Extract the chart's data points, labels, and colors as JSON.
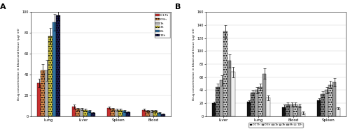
{
  "panel_A": {
    "categories": [
      "Lung",
      "Liver",
      "Spleen",
      "Blood"
    ],
    "times": [
      "0.17h",
      "0.5h",
      "1h",
      "3h",
      "6h",
      "12h"
    ],
    "values": {
      "Lung": [
        32,
        44,
        44,
        77,
        90,
        97
      ],
      "Liver": [
        9,
        7,
        7,
        6,
        5,
        3
      ],
      "Spleen": [
        8,
        7,
        6,
        6,
        5,
        4
      ],
      "Blood": [
        6,
        5,
        5,
        5,
        3,
        2
      ]
    },
    "errors": {
      "Lung": [
        4,
        6,
        10,
        8,
        8,
        5
      ],
      "Liver": [
        2,
        1,
        1,
        1,
        1,
        0.5
      ],
      "Spleen": [
        1,
        1,
        1,
        1,
        1,
        0.5
      ],
      "Blood": [
        1,
        1,
        1,
        1,
        0.5,
        0.3
      ]
    },
    "colors": [
      "#c83030",
      "#e09050",
      "#b0b0b0",
      "#d4c840",
      "#3070a0",
      "#1a1a50"
    ],
    "hatches": [
      "",
      ".....",
      "",
      ".....",
      "",
      "....."
    ],
    "ylabel": "Drug concentration in blood and tissue (μg/ ml)",
    "ylim": [
      0,
      100
    ],
    "yticks": [
      0,
      20,
      40,
      60,
      80,
      100
    ],
    "panel_label": "A",
    "ytick_top": "100"
  },
  "panel_B": {
    "categories": [
      "Liver",
      "Lung",
      "Blood",
      "Spleen"
    ],
    "times": [
      "0.17h",
      "0.5h",
      "1h",
      "3h",
      "6h",
      "12h"
    ],
    "values": {
      "Liver": [
        20,
        45,
        55,
        130,
        85,
        68
      ],
      "Lung": [
        22,
        36,
        40,
        45,
        65,
        28
      ],
      "Blood": [
        14,
        18,
        18,
        18,
        16,
        5
      ],
      "Spleen": [
        24,
        34,
        40,
        48,
        52,
        12
      ]
    },
    "errors": {
      "Liver": [
        2,
        5,
        8,
        10,
        10,
        8
      ],
      "Lung": [
        2,
        4,
        5,
        5,
        8,
        4
      ],
      "Blood": [
        4,
        3,
        3,
        3,
        3,
        2
      ],
      "Spleen": [
        3,
        4,
        5,
        6,
        6,
        2
      ]
    },
    "colors": [
      "#111111",
      "#888888",
      "#aaaaaa",
      "#cccccc",
      "#999999",
      "#f0f0f0"
    ],
    "hatches": [
      "",
      ".....",
      "",
      ".....",
      "",
      ""
    ],
    "ylabel": "Drug concentration in blood and tissue (μg/ ml)",
    "ylim": [
      0,
      160
    ],
    "yticks": [
      0,
      20,
      40,
      60,
      80,
      100,
      120,
      140,
      160
    ],
    "panel_label": "B"
  }
}
